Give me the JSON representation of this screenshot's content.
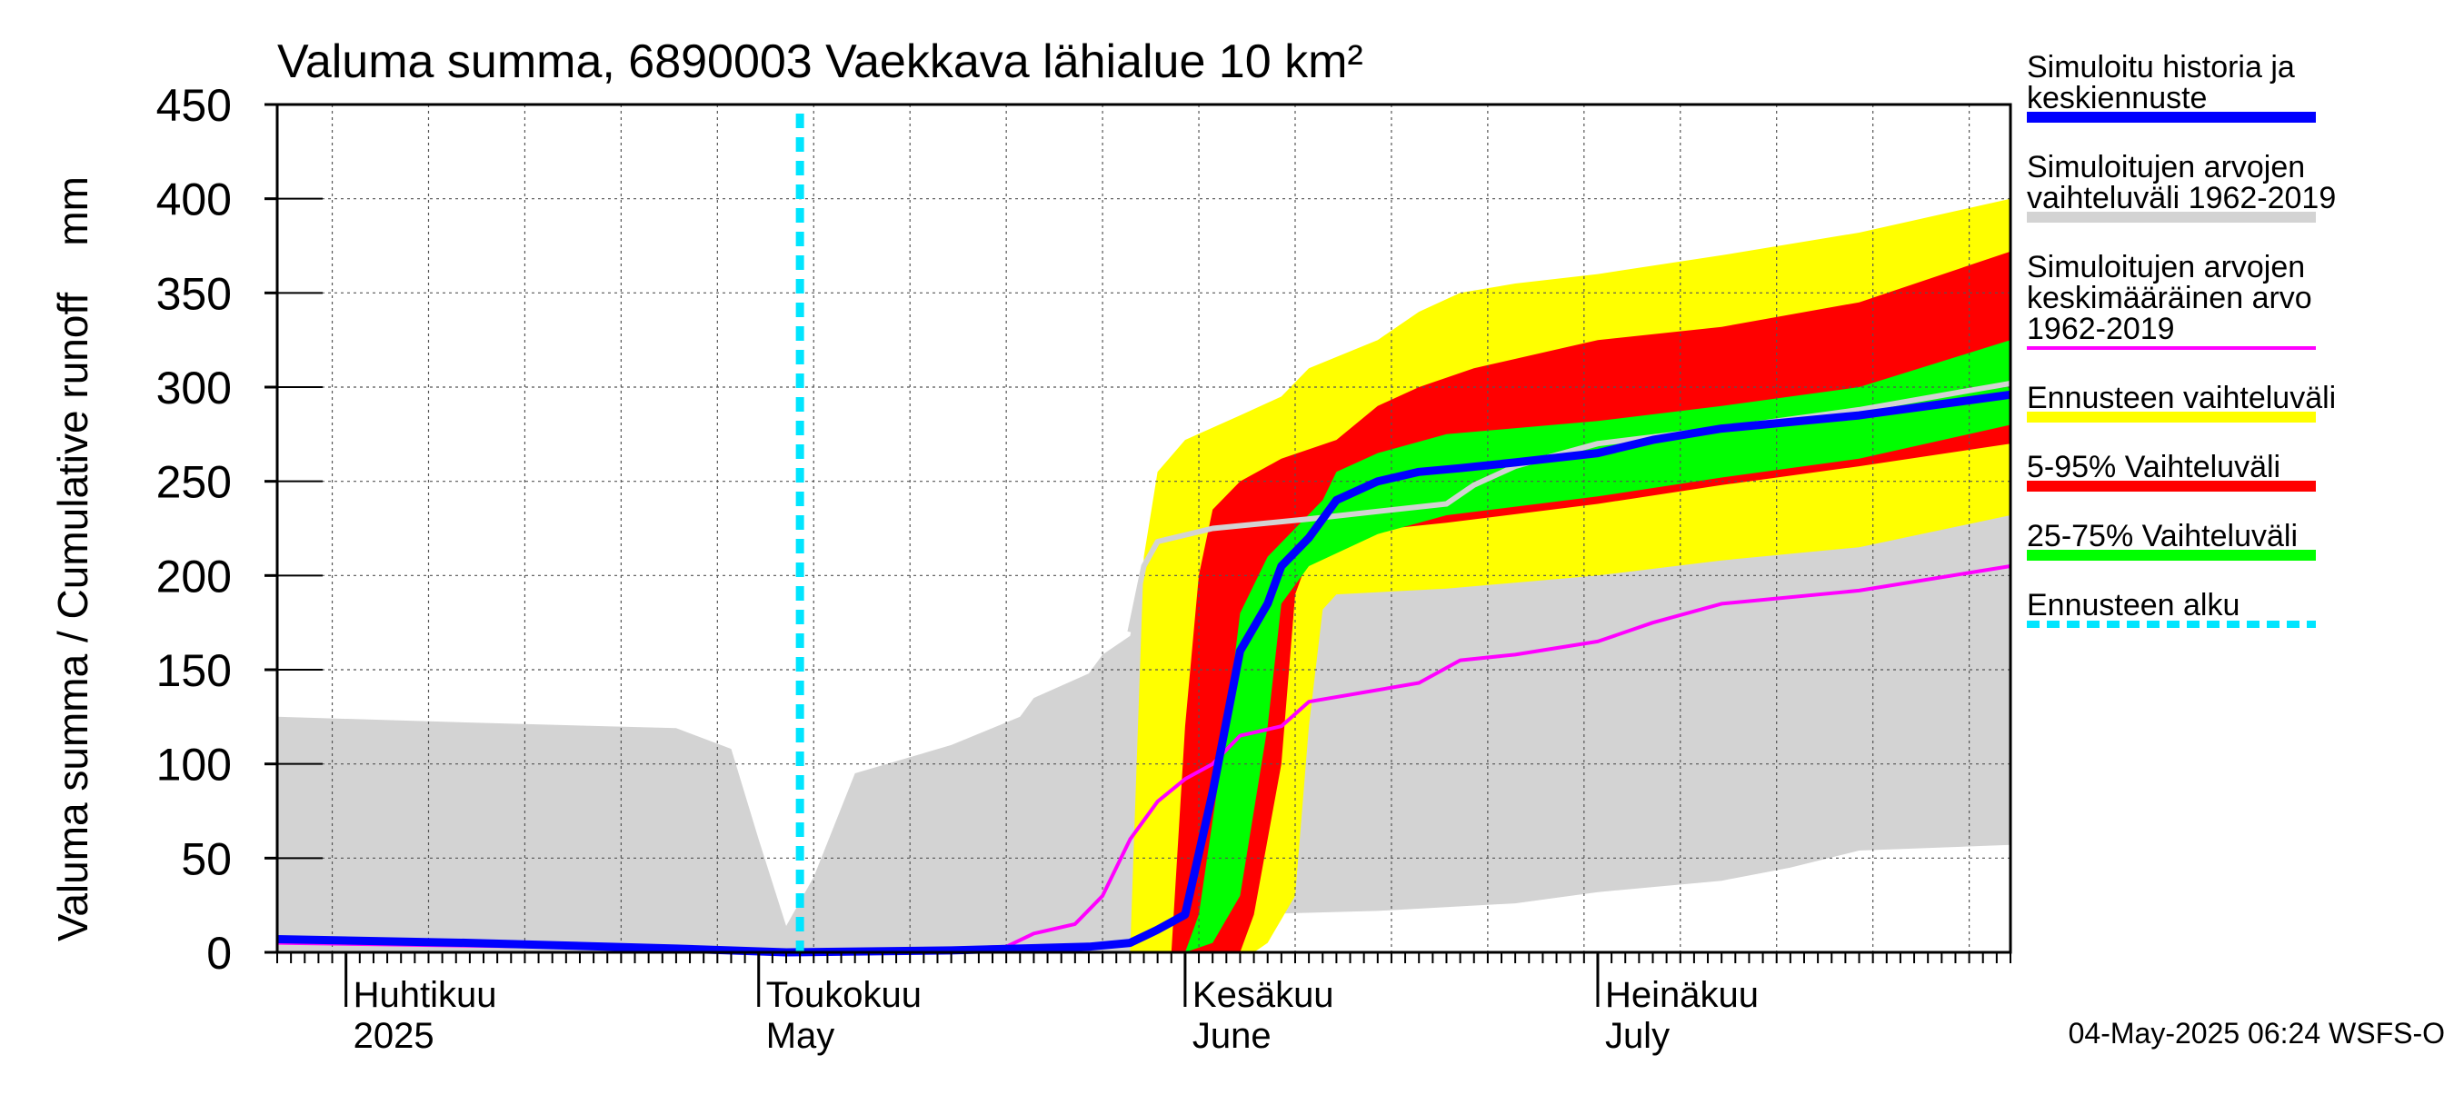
{
  "chart_data": {
    "type": "area",
    "title": "Valuma summa, 6890003 Vaekkava lähialue 10 km²",
    "ylabel": "Valuma summa / Cumulative runoff    mm",
    "ylim": [
      0,
      450
    ],
    "yticks": [
      0,
      50,
      100,
      150,
      200,
      250,
      300,
      350,
      400,
      450
    ],
    "xlim": [
      "2025-03-27",
      "2025-07-31"
    ],
    "grid": true,
    "month_labels": [
      {
        "date": "2025-04-01",
        "fi": "Huhtikuu",
        "en": "2025"
      },
      {
        "date": "2025-05-01",
        "fi": "Toukokuu",
        "en": "May"
      },
      {
        "date": "2025-06-01",
        "fi": "Kesäkuu",
        "en": "June"
      },
      {
        "date": "2025-07-01",
        "fi": "Heinäkuu",
        "en": "July"
      }
    ],
    "forecast_start": "2025-05-04",
    "timestamp": "04-May-2025 06:24 WSFS-O",
    "series": [
      {
        "name": "Simuloitujen arvojen vaihteluväli 1962-2019",
        "kind": "band",
        "color": "#d3d3d3",
        "upper": [
          [
            "2025-03-27",
            125
          ],
          [
            "2025-04-10",
            122
          ],
          [
            "2025-04-25",
            119
          ],
          [
            "2025-04-29",
            108
          ],
          [
            "2025-05-01",
            60
          ],
          [
            "2025-05-03",
            14
          ],
          [
            "2025-05-05",
            40
          ],
          [
            "2025-05-08",
            95
          ],
          [
            "2025-05-15",
            110
          ],
          [
            "2025-05-20",
            125
          ],
          [
            "2025-05-21",
            135
          ],
          [
            "2025-05-25",
            148
          ],
          [
            "2025-05-26",
            158
          ],
          [
            "2025-05-28",
            168
          ],
          [
            "2025-05-29",
            205
          ],
          [
            "2025-05-30",
            218
          ],
          [
            "2025-06-02",
            225
          ],
          [
            "2025-06-07",
            230
          ],
          [
            "2025-06-12",
            235
          ],
          [
            "2025-06-15",
            240
          ],
          [
            "2025-06-18",
            248
          ],
          [
            "2025-06-25",
            255
          ],
          [
            "2025-07-01",
            265
          ],
          [
            "2025-07-10",
            275
          ],
          [
            "2025-07-20",
            283
          ],
          [
            "2025-07-31",
            302
          ]
        ],
        "lower": [
          [
            "2025-03-27",
            0
          ],
          [
            "2025-06-04",
            0
          ],
          [
            "2025-06-05",
            20
          ],
          [
            "2025-06-15",
            22
          ],
          [
            "2025-06-25",
            26
          ],
          [
            "2025-07-01",
            32
          ],
          [
            "2025-07-10",
            38
          ],
          [
            "2025-07-15",
            45
          ],
          [
            "2025-07-20",
            54
          ],
          [
            "2025-07-31",
            57
          ]
        ]
      },
      {
        "name": "Ennusteen vaihteluväli",
        "kind": "band",
        "color": "#ffff00",
        "upper": [
          [
            "2025-05-28",
            0
          ],
          [
            "2025-05-29",
            210
          ],
          [
            "2025-05-30",
            255
          ],
          [
            "2025-06-01",
            272
          ],
          [
            "2025-06-05",
            285
          ],
          [
            "2025-06-08",
            295
          ],
          [
            "2025-06-10",
            310
          ],
          [
            "2025-06-15",
            325
          ],
          [
            "2025-06-18",
            340
          ],
          [
            "2025-06-21",
            350
          ],
          [
            "2025-06-25",
            355
          ],
          [
            "2025-07-01",
            360
          ],
          [
            "2025-07-10",
            370
          ],
          [
            "2025-07-20",
            382
          ],
          [
            "2025-07-31",
            400
          ]
        ],
        "lower": [
          [
            "2025-05-28",
            0
          ],
          [
            "2025-06-06",
            0
          ],
          [
            "2025-06-07",
            5
          ],
          [
            "2025-06-09",
            30
          ],
          [
            "2025-06-10",
            120
          ],
          [
            "2025-06-11",
            182
          ],
          [
            "2025-06-12",
            190
          ],
          [
            "2025-06-20",
            193
          ],
          [
            "2025-07-01",
            200
          ],
          [
            "2025-07-10",
            208
          ],
          [
            "2025-07-20",
            215
          ],
          [
            "2025-07-31",
            232
          ]
        ]
      },
      {
        "name": "5-95% Vaihteluväli",
        "kind": "band",
        "color": "#ff0000",
        "upper": [
          [
            "2025-05-31",
            0
          ],
          [
            "2025-06-01",
            120
          ],
          [
            "2025-06-02",
            200
          ],
          [
            "2025-06-03",
            235
          ],
          [
            "2025-06-05",
            250
          ],
          [
            "2025-06-08",
            262
          ],
          [
            "2025-06-12",
            272
          ],
          [
            "2025-06-15",
            290
          ],
          [
            "2025-06-18",
            300
          ],
          [
            "2025-06-22",
            310
          ],
          [
            "2025-07-01",
            325
          ],
          [
            "2025-07-10",
            332
          ],
          [
            "2025-07-20",
            345
          ],
          [
            "2025-07-31",
            372
          ]
        ],
        "lower": [
          [
            "2025-05-31",
            0
          ],
          [
            "2025-06-05",
            0
          ],
          [
            "2025-06-06",
            20
          ],
          [
            "2025-06-08",
            100
          ],
          [
            "2025-06-09",
            190
          ],
          [
            "2025-06-10",
            210
          ],
          [
            "2025-06-12",
            222
          ],
          [
            "2025-06-20",
            228
          ],
          [
            "2025-07-01",
            238
          ],
          [
            "2025-07-10",
            248
          ],
          [
            "2025-07-20",
            258
          ],
          [
            "2025-07-31",
            270
          ]
        ]
      },
      {
        "name": "25-75% Vaihteluväli",
        "kind": "band",
        "color": "#00ff00",
        "upper": [
          [
            "2025-06-01",
            0
          ],
          [
            "2025-06-02",
            20
          ],
          [
            "2025-06-04",
            120
          ],
          [
            "2025-06-05",
            180
          ],
          [
            "2025-06-07",
            210
          ],
          [
            "2025-06-09",
            225
          ],
          [
            "2025-06-11",
            240
          ],
          [
            "2025-06-12",
            255
          ],
          [
            "2025-06-15",
            265
          ],
          [
            "2025-06-20",
            275
          ],
          [
            "2025-07-01",
            282
          ],
          [
            "2025-07-10",
            290
          ],
          [
            "2025-07-20",
            300
          ],
          [
            "2025-07-31",
            325
          ]
        ],
        "lower": [
          [
            "2025-06-01",
            0
          ],
          [
            "2025-06-03",
            5
          ],
          [
            "2025-06-05",
            30
          ],
          [
            "2025-06-07",
            120
          ],
          [
            "2025-06-08",
            185
          ],
          [
            "2025-06-10",
            205
          ],
          [
            "2025-06-15",
            222
          ],
          [
            "2025-06-20",
            232
          ],
          [
            "2025-07-01",
            242
          ],
          [
            "2025-07-10",
            252
          ],
          [
            "2025-07-20",
            262
          ],
          [
            "2025-07-31",
            280
          ]
        ]
      },
      {
        "name": "Simuloitujen arvojen keskimääräinen arvo 1962-2019",
        "kind": "line",
        "color": "#ff00ff",
        "points": [
          [
            "2025-03-27",
            5
          ],
          [
            "2025-04-15",
            3
          ],
          [
            "2025-05-03",
            0
          ],
          [
            "2025-05-15",
            2
          ],
          [
            "2025-05-19",
            3
          ],
          [
            "2025-05-21",
            10
          ],
          [
            "2025-05-24",
            15
          ],
          [
            "2025-05-26",
            30
          ],
          [
            "2025-05-28",
            60
          ],
          [
            "2025-05-30",
            80
          ],
          [
            "2025-06-01",
            92
          ],
          [
            "2025-06-03",
            100
          ],
          [
            "2025-06-05",
            115
          ],
          [
            "2025-06-08",
            120
          ],
          [
            "2025-06-10",
            133
          ],
          [
            "2025-06-14",
            138
          ],
          [
            "2025-06-18",
            143
          ],
          [
            "2025-06-21",
            155
          ],
          [
            "2025-06-25",
            158
          ],
          [
            "2025-07-01",
            165
          ],
          [
            "2025-07-05",
            175
          ],
          [
            "2025-07-10",
            185
          ],
          [
            "2025-07-20",
            192
          ],
          [
            "2025-07-31",
            205
          ]
        ]
      },
      {
        "name": "Simuloitujen arvojen vaihteluväli 1962-2019 (mediaani)",
        "kind": "line",
        "color": "#d3d3d3",
        "hidden_label": true,
        "points": [
          [
            "2025-05-28",
            170
          ],
          [
            "2025-05-29",
            205
          ],
          [
            "2025-05-30",
            218
          ],
          [
            "2025-06-03",
            225
          ],
          [
            "2025-06-10",
            230
          ],
          [
            "2025-06-20",
            238
          ],
          [
            "2025-06-22",
            248
          ],
          [
            "2025-06-25",
            258
          ],
          [
            "2025-07-01",
            270
          ],
          [
            "2025-07-10",
            278
          ],
          [
            "2025-07-20",
            288
          ],
          [
            "2025-07-31",
            302
          ]
        ]
      },
      {
        "name": "Simuloitu historia ja keskiennuste",
        "kind": "line",
        "color": "#0000ff",
        "points": [
          [
            "2025-03-27",
            7
          ],
          [
            "2025-04-10",
            5
          ],
          [
            "2025-04-25",
            2
          ],
          [
            "2025-05-03",
            0
          ],
          [
            "2025-05-15",
            1
          ],
          [
            "2025-05-25",
            3
          ],
          [
            "2025-05-28",
            5
          ],
          [
            "2025-05-30",
            12
          ],
          [
            "2025-06-01",
            20
          ],
          [
            "2025-06-03",
            85
          ],
          [
            "2025-06-05",
            160
          ],
          [
            "2025-06-07",
            185
          ],
          [
            "2025-06-08",
            205
          ],
          [
            "2025-06-10",
            220
          ],
          [
            "2025-06-12",
            240
          ],
          [
            "2025-06-15",
            250
          ],
          [
            "2025-06-18",
            255
          ],
          [
            "2025-06-21",
            257
          ],
          [
            "2025-06-25",
            260
          ],
          [
            "2025-07-01",
            265
          ],
          [
            "2025-07-05",
            272
          ],
          [
            "2025-07-10",
            278
          ],
          [
            "2025-07-20",
            285
          ],
          [
            "2025-07-31",
            296
          ]
        ]
      },
      {
        "name": "Ennusteen alku",
        "kind": "vline",
        "color": "#00e5ff"
      }
    ],
    "legend": {
      "placement": "right",
      "entries": [
        {
          "lines": [
            "Simuloitu historia ja",
            "keskiennuste"
          ],
          "color": "#0000ff",
          "style": "solid"
        },
        {
          "lines": [
            "Simuloitujen arvojen",
            "vaihteluväli 1962-2019"
          ],
          "color": "#d3d3d3",
          "style": "solid"
        },
        {
          "lines": [
            "Simuloitujen arvojen",
            "keskimääräinen arvo",
            "   1962-2019"
          ],
          "color": "#ff00ff",
          "style": "thin"
        },
        {
          "lines": [
            "Ennusteen vaihteluväli"
          ],
          "color": "#ffff00",
          "style": "solid"
        },
        {
          "lines": [
            "5-95% Vaihteluväli"
          ],
          "color": "#ff0000",
          "style": "solid"
        },
        {
          "lines": [
            "25-75% Vaihteluväli"
          ],
          "color": "#00ff00",
          "style": "solid"
        },
        {
          "lines": [
            "Ennusteen alku"
          ],
          "color": "#00e5ff",
          "style": "dashed"
        }
      ]
    }
  }
}
